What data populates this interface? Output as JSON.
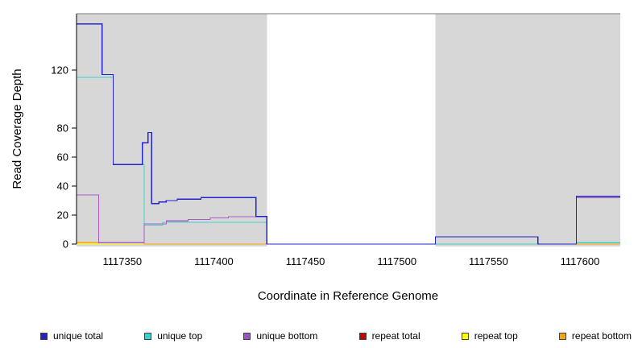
{
  "chart_data": {
    "type": "line",
    "title": "",
    "xlabel": "Coordinate in Reference Genome",
    "ylabel": "Read Coverage Depth",
    "xlim": [
      1117325,
      1117622
    ],
    "ylim": [
      0,
      159
    ],
    "xticks": [
      1117350,
      1117400,
      1117450,
      1117500,
      1117550,
      1117600
    ],
    "yticks": [
      0,
      20,
      40,
      60,
      80,
      120
    ],
    "grid": false,
    "legend_position": "bottom",
    "step_interpolation": true,
    "background_bands": {
      "color": "#d7d7d7",
      "regions": [
        [
          1117325,
          1117429
        ],
        [
          1117521,
          1117622
        ]
      ]
    },
    "top_border_color": "#7a7a7a",
    "series": [
      {
        "name": "repeat total",
        "color": "#c40000",
        "points": [
          [
            1117325,
            0
          ],
          [
            1117622,
            0
          ]
        ]
      },
      {
        "name": "repeat top",
        "color": "#ffff00",
        "points": [
          [
            1117325,
            0
          ],
          [
            1117622,
            0
          ]
        ]
      },
      {
        "name": "repeat bottom",
        "color": "#ffa500",
        "points": [
          [
            1117325,
            1
          ],
          [
            1117362,
            0
          ],
          [
            1117622,
            0
          ]
        ]
      },
      {
        "name": "unique top",
        "color": "#40d0c8",
        "points": [
          [
            1117325,
            115
          ],
          [
            1117345,
            55
          ],
          [
            1117362,
            13
          ],
          [
            1117372,
            15
          ],
          [
            1117429,
            0
          ],
          [
            1117598,
            1
          ],
          [
            1117622,
            1
          ]
        ]
      },
      {
        "name": "unique bottom",
        "color": "#a85cc8",
        "points": [
          [
            1117325,
            34
          ],
          [
            1117337,
            1
          ],
          [
            1117362,
            14
          ],
          [
            1117374,
            16
          ],
          [
            1117386,
            17
          ],
          [
            1117398,
            18
          ],
          [
            1117408,
            19
          ],
          [
            1117429,
            0
          ],
          [
            1117521,
            5
          ],
          [
            1117577,
            0
          ],
          [
            1117598,
            32
          ],
          [
            1117622,
            32
          ]
        ]
      },
      {
        "name": "unique total",
        "color": "#2323cc",
        "points": [
          [
            1117325,
            152
          ],
          [
            1117339,
            117
          ],
          [
            1117345,
            55
          ],
          [
            1117361,
            70
          ],
          [
            1117364,
            77
          ],
          [
            1117366,
            28
          ],
          [
            1117370,
            29
          ],
          [
            1117374,
            30
          ],
          [
            1117380,
            31
          ],
          [
            1117393,
            32
          ],
          [
            1117423,
            19
          ],
          [
            1117429,
            0
          ],
          [
            1117521,
            5
          ],
          [
            1117577,
            0
          ],
          [
            1117598,
            33
          ],
          [
            1117622,
            33
          ]
        ]
      }
    ],
    "legend": [
      {
        "label": "unique total",
        "color": "#2323cc"
      },
      {
        "label": "unique top",
        "color": "#40d0c8"
      },
      {
        "label": "unique bottom",
        "color": "#a052cc"
      },
      {
        "label": "repeat total",
        "color": "#c40000"
      },
      {
        "label": "repeat top",
        "color": "#ffff00"
      },
      {
        "label": "repeat bottom",
        "color": "#ffa500"
      }
    ]
  }
}
